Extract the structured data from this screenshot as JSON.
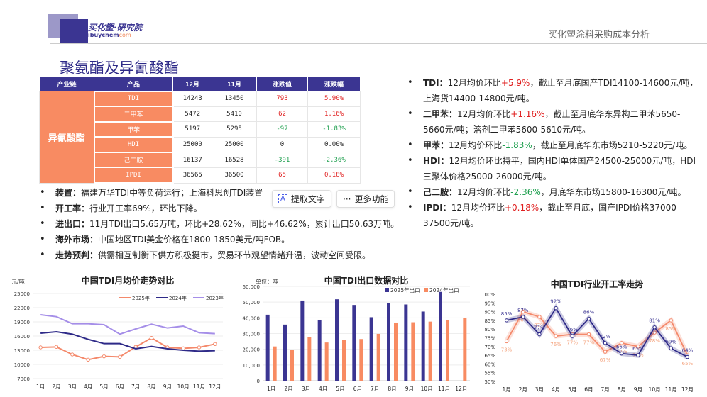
{
  "header": {
    "logo_cn": "买化塑·研究院",
    "logo_en_a": "ibuychem",
    "logo_en_b": "com",
    "right_title": "买化塑涂料采购成本分析"
  },
  "page_title": "聚氨酯及异氰酸酯",
  "table": {
    "headers": [
      "产业链",
      "产品",
      "12月",
      "11月",
      "涨跌值",
      "涨跌幅"
    ],
    "chain": "异氰酸酯",
    "rows": [
      [
        "TDI",
        "14243",
        "13450",
        "793",
        "5.90%",
        "up"
      ],
      [
        "二甲苯",
        "5472",
        "5410",
        "62",
        "1.16%",
        "up"
      ],
      [
        "甲苯",
        "5197",
        "5295",
        "-97",
        "-1.83%",
        "down"
      ],
      [
        "HDI",
        "25000",
        "25000",
        "0",
        "0.00%",
        "flat"
      ],
      [
        "己二胺",
        "16137",
        "16528",
        "-391",
        "-2.36%",
        "down"
      ],
      [
        "IPDI",
        "36565",
        "36500",
        "65",
        "0.18%",
        "up"
      ]
    ]
  },
  "left_bullets": [
    {
      "k": "装置：",
      "v": "福建万华TDI中等负荷运行；上海科思创TDI装置"
    },
    {
      "k": "开工率：",
      "v": "行业开工率69%，环比下降。"
    },
    {
      "k": "进出口：",
      "v": "11月TDI出口5.65万吨，环比+28.62%，同比+46.62%，累计出口50.63万吨。"
    },
    {
      "k": "海外市场：",
      "v": "中国地区TDI美金价格在1800-1850美元/吨FOB。"
    },
    {
      "k": "走势预判：",
      "v": "供需相互制衡下供方积极挺市，贸易环节观望情绪升温，波动空间受限。"
    }
  ],
  "overlay": {
    "extract_text": "提取文字",
    "more": "更多功能"
  },
  "right_bullets": [
    {
      "k": "TDI：",
      "a": "12月均价环比",
      "c": "+5.9%",
      "cls": "red",
      "b": "，截止至月底国产TDI14100-14600元/吨，上海货14400-14800元/吨。"
    },
    {
      "k": "二甲苯：",
      "a": "12月均价环比",
      "c": "+1.16%",
      "cls": "red",
      "b": "，截止至月底华东异构二甲苯5650-5660元/吨；溶剂二甲苯5600-5610元/吨。"
    },
    {
      "k": "甲苯：",
      "a": "12月均价环比",
      "c": "-1.83%",
      "cls": "green",
      "b": "，截止至月底华东市场5210-5220元/吨。"
    },
    {
      "k": "HDI：",
      "a": "12月均价环比持平，国内HDI单体国产24500-25000元/吨，HDI三聚体价格25000-26000元/吨。",
      "c": "",
      "cls": "",
      "b": ""
    },
    {
      "k": "己二胺：",
      "a": "12月均价环比",
      "c": "-2.36%",
      "cls": "green",
      "b": "，月底华东市场15800-16300元/吨。"
    },
    {
      "k": "IPDI：",
      "a": "12月均价环比",
      "c": "+0.18%",
      "cls": "red",
      "b": "，截止至月底，国产IPDI价格37000-37500元/吨。"
    }
  ],
  "chart_data": [
    {
      "type": "line",
      "title": "中国TDI月均价走势对比",
      "ylabel": "元/吨",
      "ylim": [
        7000,
        25000
      ],
      "yticks": [
        7000,
        10000,
        13000,
        16000,
        19000,
        22000,
        25000
      ],
      "legend": "top-right",
      "grid": true,
      "categories": [
        "1月",
        "2月",
        "3月",
        "4月",
        "5月",
        "6月",
        "7月",
        "8月",
        "9月",
        "10月",
        "11月",
        "12月"
      ],
      "series": [
        {
          "name": "2025年",
          "color": "#f4896b",
          "marker": true,
          "values": [
            13600,
            13700,
            12100,
            11000,
            11700,
            11600,
            13700,
            15600,
            13600,
            13400,
            13600,
            14300
          ]
        },
        {
          "name": "2024年",
          "color": "#2e2a88",
          "values": [
            16600,
            16900,
            16400,
            15300,
            14400,
            14400,
            13300,
            13800,
            13300,
            13000,
            12800,
            12900
          ]
        },
        {
          "name": "2023年",
          "color": "#a58ee8",
          "values": [
            20500,
            20100,
            18600,
            18600,
            18400,
            16400,
            17500,
            18500,
            17700,
            18100,
            16700,
            16500
          ]
        }
      ]
    },
    {
      "type": "bar",
      "title": "中国TDI出口数据对比",
      "ylabel": "单位：吨",
      "ylim": [
        0,
        60000
      ],
      "yticks": [
        "0",
        "10,000",
        "20,000",
        "30,000",
        "40,000",
        "50,000",
        "60,000"
      ],
      "legend": "top-right",
      "grid": true,
      "categories": [
        "1月",
        "2月",
        "3月",
        "4月",
        "5月",
        "6月",
        "7月",
        "8月",
        "9月",
        "10月",
        "11月",
        "12月"
      ],
      "series": [
        {
          "name": "2025年出口",
          "color": "#3b3592",
          "values": [
            42000,
            35700,
            51000,
            38800,
            51800,
            48200,
            40400,
            49500,
            48500,
            44000,
            56500,
            null
          ]
        },
        {
          "name": "2024年出口",
          "color": "#f88b62",
          "values": [
            21800,
            19500,
            27800,
            24300,
            26000,
            26500,
            29800,
            37000,
            37200,
            37600,
            38500,
            40000
          ]
        }
      ]
    },
    {
      "type": "line",
      "title": "中国TDI行业开工率走势",
      "ylim": [
        50,
        100
      ],
      "yticks": [
        "50%",
        "55%",
        "60%",
        "65%",
        "70%",
        "75%",
        "80%",
        "85%",
        "90%",
        "95%",
        "100%"
      ],
      "grid": false,
      "categories": [
        "1月",
        "2月",
        "3月",
        "4月",
        "5月",
        "6月",
        "7月",
        "8月",
        "9月",
        "10月",
        "11月",
        "12月"
      ],
      "series": [
        {
          "color": "#f4896b",
          "values": [
            73,
            90,
            87,
            76,
            77,
            77,
            67,
            72,
            70,
            78,
            85,
            65
          ]
        },
        {
          "color": "#2e2a88",
          "values": [
            85,
            87,
            77,
            92,
            76,
            86,
            72,
            66,
            65,
            81,
            69,
            64
          ]
        }
      ]
    }
  ]
}
